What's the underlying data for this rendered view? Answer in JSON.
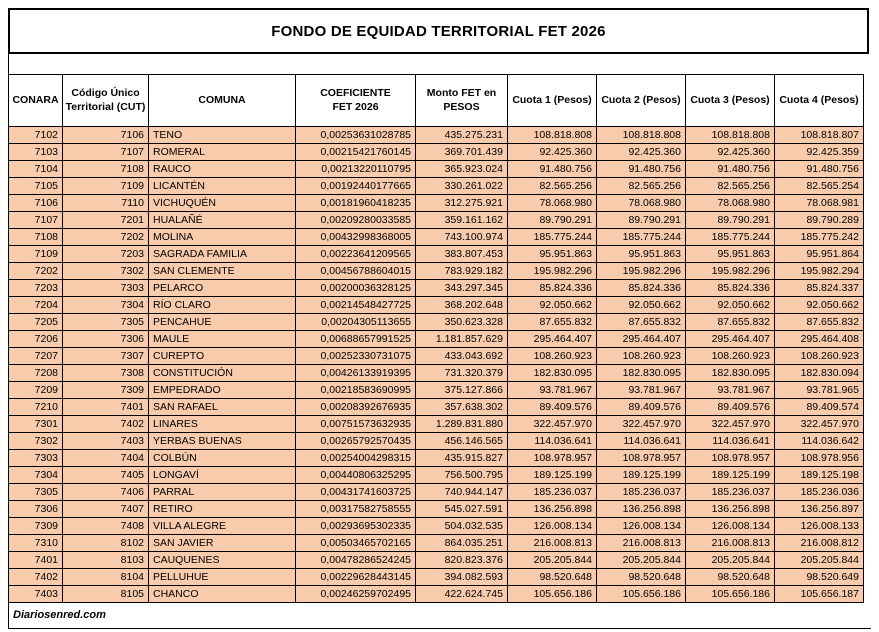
{
  "title": "FONDO DE EQUIDAD TERRITORIAL FET 2026",
  "footer": {
    "credit": "Diariosenred.com"
  },
  "colors": {
    "row_bg": "#F8CBAD",
    "border": "#000000",
    "header_bg": "#FFFFFF"
  },
  "table": {
    "keys": [
      "conara",
      "cut",
      "comuna",
      "coeficiente",
      "monto",
      "cuota1",
      "cuota2",
      "cuota3",
      "cuota4"
    ],
    "headers": [
      "CONARA",
      "Código Único\nTerritorial (CUT)",
      "COMUNA",
      "COEFICIENTE\nFET 2026",
      "Monto FET en\nPESOS",
      "Cuota 1 (Pesos)",
      "Cuota 2 (Pesos)",
      "Cuota 3 (Pesos)",
      "Cuota 4 (Pesos)"
    ],
    "rows": [
      [
        "7102",
        "7106",
        "TENO",
        "0,00253631028785",
        "435.275.231",
        "108.818.808",
        "108.818.808",
        "108.818.808",
        "108.818.807"
      ],
      [
        "7103",
        "7107",
        "ROMERAL",
        "0,00215421760145",
        "369.701.439",
        "92.425.360",
        "92.425.360",
        "92.425.360",
        "92.425.359"
      ],
      [
        "7104",
        "7108",
        "RAUCO",
        "0,00213220110795",
        "365.923.024",
        "91.480.756",
        "91.480.756",
        "91.480.756",
        "91.480.756"
      ],
      [
        "7105",
        "7109",
        "LICANTÉN",
        "0,00192440177665",
        "330.261.022",
        "82.565.256",
        "82.565.256",
        "82.565.256",
        "82.565.254"
      ],
      [
        "7106",
        "7110",
        "VICHUQUÉN",
        "0,00181960418235",
        "312.275.921",
        "78.068.980",
        "78.068.980",
        "78.068.980",
        "78.068.981"
      ],
      [
        "7107",
        "7201",
        "HUALAÑÉ",
        "0,00209280033585",
        "359.161.162",
        "89.790.291",
        "89.790.291",
        "89.790.291",
        "89.790.289"
      ],
      [
        "7108",
        "7202",
        "MOLINA",
        "0,00432998368005",
        "743.100.974",
        "185.775.244",
        "185.775.244",
        "185.775.244",
        "185.775.242"
      ],
      [
        "7109",
        "7203",
        "SAGRADA FAMILIA",
        "0,00223641209565",
        "383.807.453",
        "95.951.863",
        "95.951.863",
        "95.951.863",
        "95.951.864"
      ],
      [
        "7202",
        "7302",
        "SAN CLEMENTE",
        "0,00456788604015",
        "783.929.182",
        "195.982.296",
        "195.982.296",
        "195.982.296",
        "195.982.294"
      ],
      [
        "7203",
        "7303",
        "PELARCO",
        "0,00200036328125",
        "343.297.345",
        "85.824.336",
        "85.824.336",
        "85.824.336",
        "85.824.337"
      ],
      [
        "7204",
        "7304",
        "RÍO CLARO",
        "0,00214548427725",
        "368.202.648",
        "92.050.662",
        "92.050.662",
        "92.050.662",
        "92.050.662"
      ],
      [
        "7205",
        "7305",
        "PENCAHUE",
        "0,00204305113655",
        "350.623.328",
        "87.655.832",
        "87.655.832",
        "87.655.832",
        "87.655.832"
      ],
      [
        "7206",
        "7306",
        "MAULE",
        "0,00688657991525",
        "1.181.857.629",
        "295.464.407",
        "295.464.407",
        "295.464.407",
        "295.464.408"
      ],
      [
        "7207",
        "7307",
        "CUREPTO",
        "0,00252330731075",
        "433.043.692",
        "108.260.923",
        "108.260.923",
        "108.260.923",
        "108.260.923"
      ],
      [
        "7208",
        "7308",
        "CONSTITUCIÓN",
        "0,00426133919395",
        "731.320.379",
        "182.830.095",
        "182.830.095",
        "182.830.095",
        "182.830.094"
      ],
      [
        "7209",
        "7309",
        "EMPEDRADO",
        "0,00218583690995",
        "375.127.866",
        "93.781.967",
        "93.781.967",
        "93.781.967",
        "93.781.965"
      ],
      [
        "7210",
        "7401",
        "SAN RAFAEL",
        "0,00208392676935",
        "357.638.302",
        "89.409.576",
        "89.409.576",
        "89.409.576",
        "89.409.574"
      ],
      [
        "7301",
        "7402",
        "LINARES",
        "0,00751573632935",
        "1.289.831.880",
        "322.457.970",
        "322.457.970",
        "322.457.970",
        "322.457.970"
      ],
      [
        "7302",
        "7403",
        "YERBAS BUENAS",
        "0,00265792570435",
        "456.146.565",
        "114.036.641",
        "114.036.641",
        "114.036.641",
        "114.036.642"
      ],
      [
        "7303",
        "7404",
        "COLBÚN",
        "0,00254004298315",
        "435.915.827",
        "108.978.957",
        "108.978.957",
        "108.978.957",
        "108.978.956"
      ],
      [
        "7304",
        "7405",
        "LONGAVÍ",
        "0,00440806325295",
        "756.500.795",
        "189.125.199",
        "189.125.199",
        "189.125.199",
        "189.125.198"
      ],
      [
        "7305",
        "7406",
        "PARRAL",
        "0,00431741603725",
        "740.944.147",
        "185.236.037",
        "185.236.037",
        "185.236.037",
        "185.236.036"
      ],
      [
        "7306",
        "7407",
        "RETIRO",
        "0,00317582758555",
        "545.027.591",
        "136.256.898",
        "136.256.898",
        "136.256.898",
        "136.256.897"
      ],
      [
        "7309",
        "7408",
        "VILLA ALEGRE",
        "0,00293695302335",
        "504.032.535",
        "126.008.134",
        "126.008.134",
        "126.008.134",
        "126.008.133"
      ],
      [
        "7310",
        "8102",
        "SAN JAVIER",
        "0,00503465702165",
        "864.035.251",
        "216.008.813",
        "216.008.813",
        "216.008.813",
        "216.008.812"
      ],
      [
        "7401",
        "8103",
        "CAUQUENES",
        "0,00478286524245",
        "820.823.376",
        "205.205.844",
        "205.205.844",
        "205.205.844",
        "205.205.844"
      ],
      [
        "7402",
        "8104",
        "PELLUHUE",
        "0,00229628443145",
        "394.082.593",
        "98.520.648",
        "98.520.648",
        "98.520.648",
        "98.520.649"
      ],
      [
        "7403",
        "8105",
        "CHANCO",
        "0,00246259702495",
        "422.624.745",
        "105.656.186",
        "105.656.186",
        "105.656.186",
        "105.656.187"
      ]
    ]
  }
}
